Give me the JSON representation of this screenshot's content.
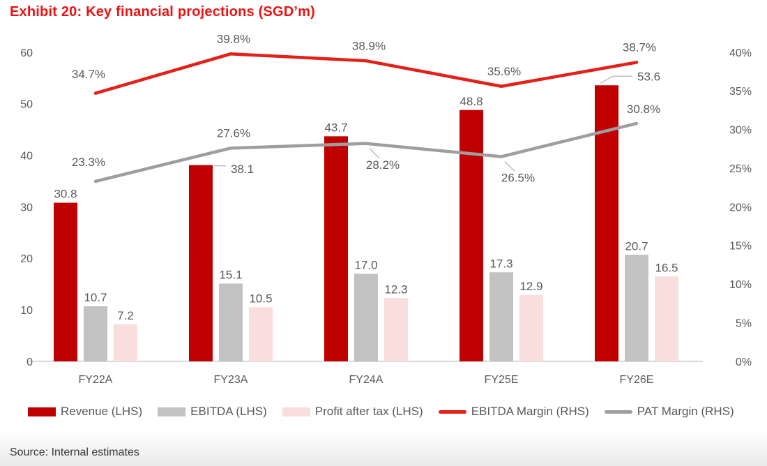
{
  "title": "Exhibit 20: Key financial projections (SGD’m)",
  "source": "Source: Internal estimates",
  "colors": {
    "title_red": "#ee1111",
    "revenue": "#c00000",
    "ebitda": "#c2c2c2",
    "pat": "#f9dedd",
    "ebitda_margin": "#e32119",
    "pat_margin": "#9e9e9e",
    "axis_line": "#d9d9d9",
    "label_text": "#595959",
    "leader_line": "#bfbfbf"
  },
  "chart_data": {
    "type": "bar",
    "subtype": "combo-bar-line",
    "categories": [
      "FY22A",
      "FY23A",
      "FY24A",
      "FY25E",
      "FY26E"
    ],
    "bar_series": [
      {
        "name": "Revenue (LHS)",
        "axis": "left",
        "color_key": "revenue",
        "values": [
          30.8,
          38.1,
          43.7,
          48.8,
          53.6
        ],
        "label_placements": [
          "above",
          "right",
          "above",
          "above",
          "right-up"
        ]
      },
      {
        "name": "EBITDA (LHS)",
        "axis": "left",
        "color_key": "ebitda",
        "values": [
          10.7,
          15.1,
          17.0,
          17.3,
          20.7
        ],
        "label_placements": [
          "above",
          "above",
          "above",
          "above",
          "above"
        ]
      },
      {
        "name": "Profit after tax (LHS)",
        "axis": "left",
        "color_key": "pat",
        "values": [
          7.2,
          10.5,
          12.3,
          12.9,
          16.5
        ],
        "label_placements": [
          "above",
          "above",
          "above",
          "above",
          "above"
        ]
      }
    ],
    "line_series": [
      {
        "name": "EBITDA Margin (RHS)",
        "axis": "right",
        "color_key": "ebitda_margin",
        "values": [
          34.7,
          39.8,
          38.9,
          35.6,
          38.7
        ],
        "labels": [
          "34.7%",
          "39.8%",
          "38.9%",
          "35.6%",
          "38.7%"
        ],
        "label_placements": [
          "above-left",
          "above",
          "above",
          "above",
          "above"
        ]
      },
      {
        "name": "PAT Margin (RHS)",
        "axis": "right",
        "color_key": "pat_margin",
        "values": [
          23.3,
          27.6,
          28.2,
          26.5,
          30.8
        ],
        "labels": [
          "23.3%",
          "27.6%",
          "28.2%",
          "26.5%",
          "30.8%"
        ],
        "label_placements": [
          "above-left",
          "above",
          "below-leader",
          "below-leader",
          "above-right"
        ]
      }
    ],
    "left_axis": {
      "min": 0,
      "max": 60,
      "step": 10,
      "tick_labels": [
        "0",
        "10",
        "20",
        "30",
        "40",
        "50",
        "60"
      ]
    },
    "right_axis": {
      "min": 0,
      "max": 40,
      "step": 5,
      "tick_labels": [
        "0%",
        "5%",
        "10%",
        "15%",
        "20%",
        "25%",
        "30%",
        "35%",
        "40%"
      ]
    },
    "grid": "off",
    "legend_position": "bottom"
  },
  "legend": {
    "items": [
      {
        "label": "Revenue (LHS)",
        "swatch": "bar",
        "color_key": "revenue"
      },
      {
        "label": "EBITDA (LHS)",
        "swatch": "bar",
        "color_key": "ebitda"
      },
      {
        "label": "Profit after tax (LHS)",
        "swatch": "bar",
        "color_key": "pat"
      },
      {
        "label": "EBITDA Margin (RHS)",
        "swatch": "line",
        "color_key": "ebitda_margin"
      },
      {
        "label": "PAT Margin (RHS)",
        "swatch": "line",
        "color_key": "pat_margin"
      }
    ]
  }
}
